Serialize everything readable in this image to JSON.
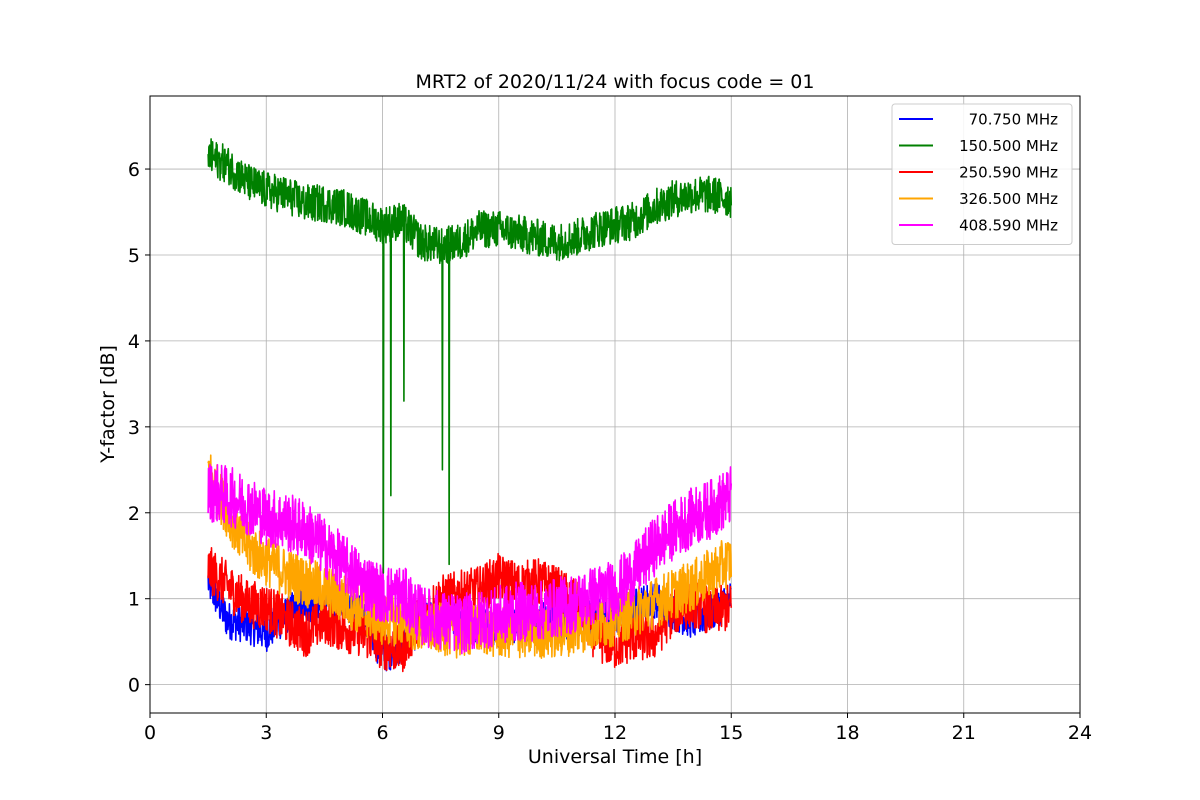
{
  "chart_data": {
    "type": "line",
    "title": "MRT2 of 2020/11/24 with focus code = 01",
    "xlabel": "Universal Time [h]",
    "ylabel": "Y-factor [dB]",
    "xlim": [
      0,
      24
    ],
    "ylim": [
      -0.33,
      6.85
    ],
    "xticks": [
      0,
      3,
      6,
      9,
      12,
      15,
      18,
      21,
      24
    ],
    "yticks": [
      0,
      1,
      2,
      3,
      4,
      5,
      6
    ],
    "grid": true,
    "legend_position": "top-right",
    "series": [
      {
        "name": "70.750 MHz",
        "color": "#0000ff",
        "noise": 0.22,
        "x": [
          1.5,
          2.0,
          2.5,
          3.0,
          3.5,
          4.0,
          4.5,
          5.0,
          5.5,
          6.0,
          6.5,
          7.0,
          7.5,
          8.0,
          8.5,
          9.0,
          9.5,
          10.0,
          10.5,
          11.0,
          11.5,
          12.0,
          12.5,
          13.0,
          13.5,
          14.0,
          14.5,
          15.0
        ],
        "y": [
          1.2,
          0.75,
          0.7,
          0.6,
          0.8,
          0.95,
          0.9,
          1.0,
          0.8,
          0.35,
          0.45,
          0.7,
          0.8,
          0.75,
          0.7,
          0.65,
          0.7,
          0.75,
          0.7,
          0.75,
          0.8,
          0.8,
          0.9,
          1.0,
          0.85,
          0.75,
          0.85,
          1.0
        ]
      },
      {
        "name": "150.500 MHz",
        "color": "#008000",
        "noise": 0.22,
        "x": [
          1.5,
          2.0,
          2.5,
          3.0,
          3.5,
          4.0,
          4.5,
          5.0,
          5.5,
          6.0,
          6.5,
          7.0,
          7.5,
          8.0,
          8.5,
          9.0,
          9.5,
          10.0,
          10.5,
          11.0,
          11.5,
          12.0,
          12.5,
          13.0,
          13.5,
          14.0,
          14.5,
          15.0
        ],
        "y": [
          6.15,
          6.05,
          5.85,
          5.75,
          5.7,
          5.6,
          5.6,
          5.55,
          5.45,
          5.35,
          5.4,
          5.15,
          5.1,
          5.15,
          5.3,
          5.3,
          5.25,
          5.2,
          5.15,
          5.2,
          5.3,
          5.35,
          5.4,
          5.55,
          5.65,
          5.7,
          5.7,
          5.65
        ]
      },
      {
        "name": "250.590 MHz",
        "color": "#ff0000",
        "noise": 0.28,
        "x": [
          1.5,
          2.0,
          2.5,
          3.0,
          3.5,
          4.0,
          4.5,
          5.0,
          5.5,
          6.0,
          6.5,
          7.0,
          7.5,
          8.0,
          8.5,
          9.0,
          9.5,
          10.0,
          10.5,
          11.0,
          11.5,
          12.0,
          12.5,
          13.0,
          13.5,
          14.0,
          14.5,
          15.0
        ],
        "y": [
          1.35,
          1.15,
          0.95,
          0.9,
          0.75,
          0.6,
          0.75,
          0.65,
          0.6,
          0.45,
          0.4,
          0.8,
          1.0,
          1.05,
          1.1,
          1.25,
          1.15,
          1.2,
          1.1,
          0.95,
          0.55,
          0.45,
          0.55,
          0.55,
          0.85,
          0.95,
          0.85,
          0.9
        ]
      },
      {
        "name": "326.500 MHz",
        "color": "#ffa500",
        "noise": 0.3,
        "x": [
          1.5,
          2.0,
          2.5,
          3.0,
          3.5,
          4.0,
          4.5,
          5.0,
          5.5,
          6.0,
          6.5,
          7.0,
          7.5,
          8.0,
          8.5,
          9.0,
          9.5,
          10.0,
          10.5,
          11.0,
          11.5,
          12.0,
          12.5,
          13.0,
          13.5,
          14.0,
          14.5,
          15.0
        ],
        "y": [
          2.5,
          2.0,
          1.6,
          1.45,
          1.3,
          1.2,
          1.1,
          1.0,
          0.85,
          0.75,
          0.75,
          0.65,
          0.65,
          0.6,
          0.65,
          0.6,
          0.6,
          0.6,
          0.6,
          0.65,
          0.7,
          0.75,
          0.85,
          0.95,
          1.05,
          1.15,
          1.3,
          1.45
        ]
      },
      {
        "name": "408.590 MHz",
        "color": "#ff00ff",
        "noise": 0.35,
        "x": [
          1.5,
          2.0,
          2.5,
          3.0,
          3.5,
          4.0,
          4.5,
          5.0,
          5.5,
          6.0,
          6.5,
          7.0,
          7.5,
          8.0,
          8.5,
          9.0,
          9.5,
          10.0,
          10.5,
          11.0,
          11.5,
          12.0,
          12.5,
          13.0,
          13.5,
          14.0,
          14.5,
          15.0
        ],
        "y": [
          2.25,
          2.2,
          2.1,
          1.95,
          1.9,
          1.8,
          1.6,
          1.4,
          1.2,
          1.05,
          1.05,
          0.8,
          0.75,
          0.7,
          0.75,
          0.8,
          0.85,
          0.85,
          0.9,
          0.95,
          1.05,
          1.1,
          1.3,
          1.6,
          1.8,
          1.95,
          2.05,
          2.2
        ]
      }
    ],
    "dips": [
      {
        "series": "150.500 MHz",
        "x": 6.02,
        "y": 1.3
      },
      {
        "series": "150.500 MHz",
        "x": 6.22,
        "y": 2.2
      },
      {
        "series": "150.500 MHz",
        "x": 6.55,
        "y": 3.3
      },
      {
        "series": "150.500 MHz",
        "x": 7.55,
        "y": 2.5
      },
      {
        "series": "150.500 MHz",
        "x": 7.72,
        "y": 1.4
      }
    ]
  }
}
